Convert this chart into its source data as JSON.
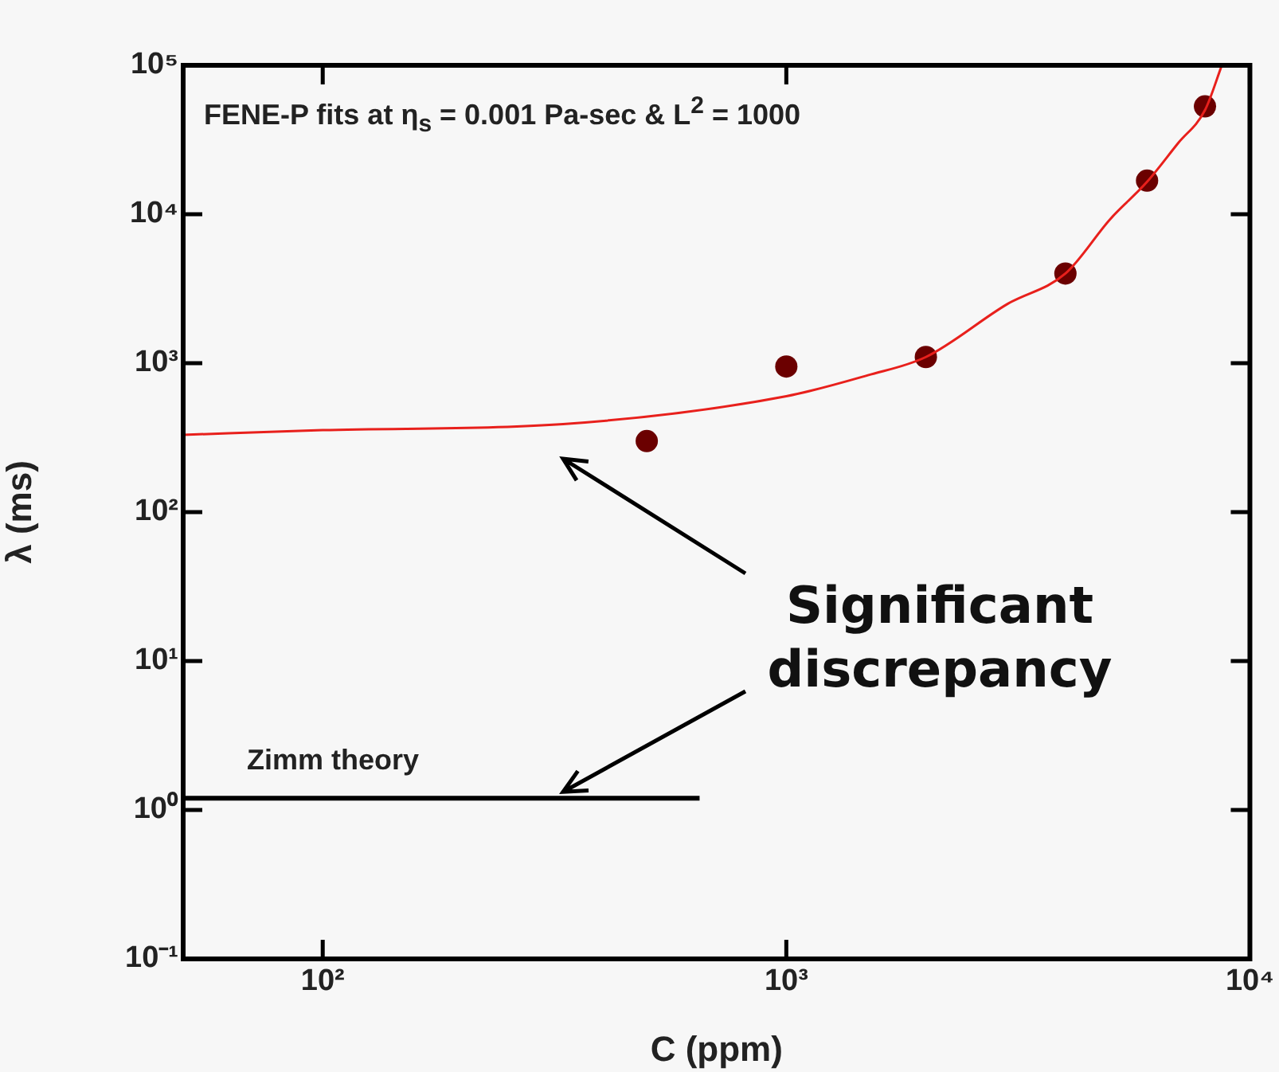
{
  "chart_data": {
    "type": "line",
    "xlabel": "C (ppm)",
    "ylabel": "λ (ms)",
    "log": "xy",
    "grid": false,
    "xlim": [
      50,
      10000
    ],
    "ylim": [
      0.1,
      100000
    ],
    "xticks": [
      {
        "value": 100,
        "label": "10²"
      },
      {
        "value": 1000,
        "label": "10³"
      },
      {
        "value": 10000,
        "label": "10⁴"
      }
    ],
    "yticks": [
      {
        "value": 0.1,
        "label": "10⁻¹"
      },
      {
        "value": 1,
        "label": "10⁰"
      },
      {
        "value": 10,
        "label": "10¹"
      },
      {
        "value": 100,
        "label": "10²"
      },
      {
        "value": 1000,
        "label": "10³"
      },
      {
        "value": 10000,
        "label": "10⁴"
      },
      {
        "value": 100000,
        "label": "10⁵"
      }
    ],
    "annotations": [
      "FENE-P  fits at η$_{s}$ = 0.001 Pa-sec & L$^{2}$ = 1000",
      {
        "text": "Significant discrepancy",
        "x": 330,
        "y": 1.2
      }
    ],
    "series": [
      {
        "type": "line",
        "color": "#e8201c",
        "marker": "none",
        "line_style": "solid",
        "x": [
          50,
          100,
          330,
          1000,
          1500,
          2000,
          3000,
          4000,
          5000,
          6000,
          7000,
          8000,
          8700
        ],
        "values": [
          330,
          355,
          390,
          600,
          830,
          1100,
          2500,
          4000,
          9300,
          16500,
          30000,
          50000,
          100000
        ]
      },
      {
        "type": "scatter",
        "color": "#6b0000",
        "marker": "circle",
        "x": [
          500,
          1000,
          2000,
          4000,
          6000,
          8000
        ],
        "values": [
          300,
          950,
          1100,
          4000,
          16800,
          53000
        ]
      },
      {
        "type": "line",
        "name": "Zimm theory",
        "color": "#000000",
        "marker": "none",
        "line_style": "solid",
        "x": [
          50,
          650
        ],
        "values": [
          1.2,
          1.2
        ]
      }
    ]
  }
}
